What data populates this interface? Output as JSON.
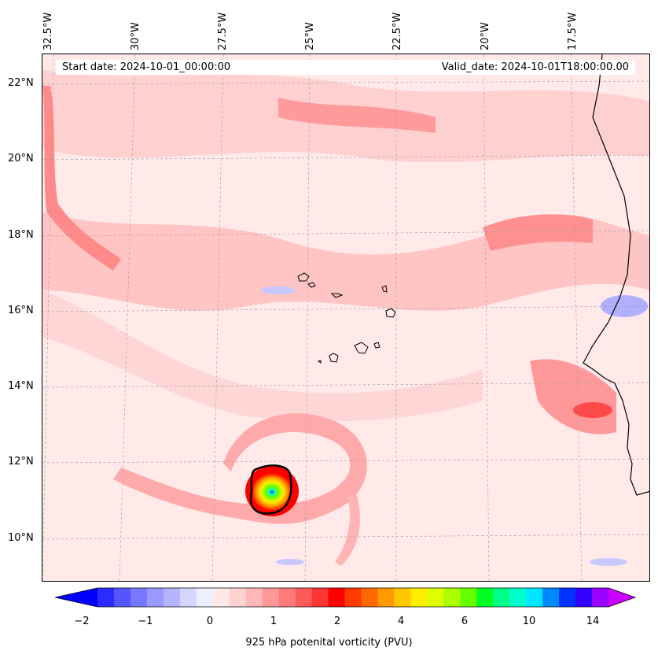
{
  "map": {
    "start_date": "Start date: 2024-10-01_00:00:00",
    "valid_date": "Valid_date: 2024-10-01T18:00:00.00",
    "lon_labels": [
      "32.5°W",
      "30°W",
      "27.5°W",
      "25°W",
      "22.5°W",
      "20°W",
      "17.5°W"
    ],
    "lat_labels": [
      "22°N",
      "20°N",
      "18°N",
      "16°N",
      "14°N",
      "12°N",
      "10°N"
    ]
  },
  "colorbar": {
    "label": "925 hPa potenital vorticity (PVU)",
    "ticks": [
      "−2",
      "−1",
      "0",
      "1",
      "2",
      "4",
      "6",
      "10",
      "14"
    ],
    "colors": [
      "#0000ff",
      "#2b2bff",
      "#5555ff",
      "#7777ff",
      "#9999ff",
      "#b5b5ff",
      "#d5d5ff",
      "#eeeeff",
      "#ffe8e8",
      "#ffd2d2",
      "#ffb8b8",
      "#ff9999",
      "#ff7a7a",
      "#ff5a5a",
      "#ff3636",
      "#ff0000",
      "#ff3a00",
      "#ff6a00",
      "#ff9a00",
      "#ffc800",
      "#ffee00",
      "#ddff00",
      "#aaff00",
      "#66ff00",
      "#00ff22",
      "#00ff88",
      "#00ffcc",
      "#00e5ff",
      "#0088ff",
      "#0033ff",
      "#3300ff",
      "#9900ff",
      "#cc00ff"
    ]
  }
}
